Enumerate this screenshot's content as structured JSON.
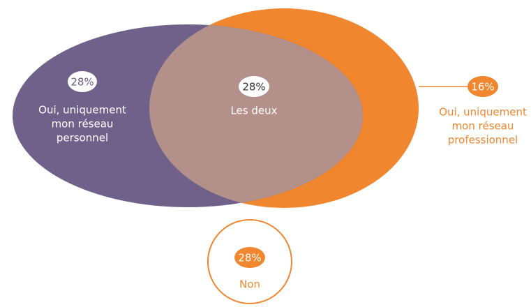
{
  "diagram": {
    "regions": [
      {
        "value": "28%",
        "label": [
          "Oui, uniquement",
          "mon réseau",
          "personnel"
        ]
      },
      {
        "value": "28%",
        "label": [
          "Les deux"
        ]
      },
      {
        "value": "16%",
        "label": [
          "Oui, uniquement",
          "mon réseau",
          "professionnel"
        ]
      },
      {
        "value": "28%",
        "label": [
          "Non"
        ]
      }
    ]
  }
}
